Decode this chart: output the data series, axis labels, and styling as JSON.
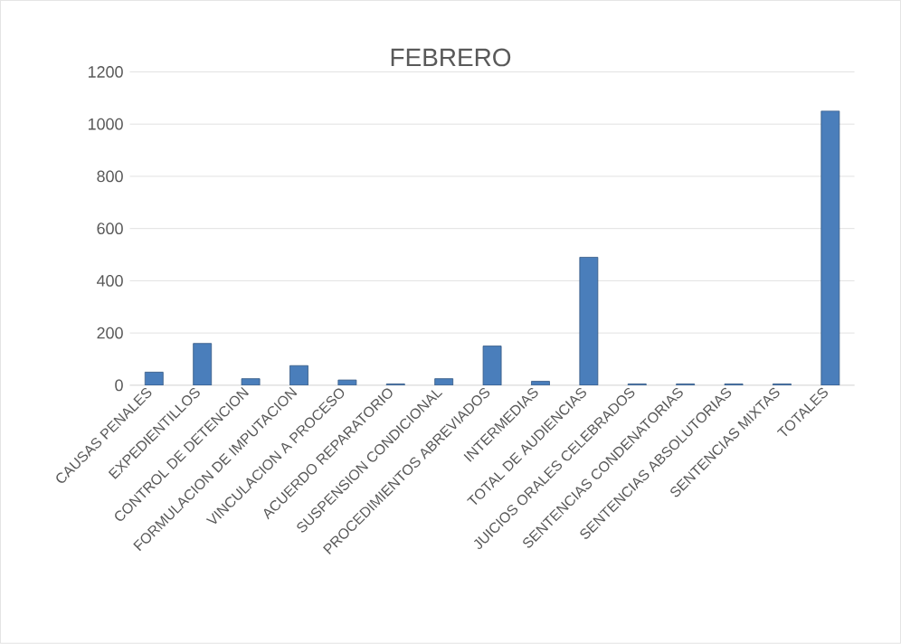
{
  "chart_data": {
    "type": "bar",
    "title": "FEBRERO",
    "categories": [
      "CAUSAS PENALES",
      "EXPEDIENTILLOS",
      "CONTROL DE DETENCION",
      "FORMULACION DE IMPUTACION",
      "VINCULACION A PROCESO",
      "ACUERDO REPARATORIO",
      "SUSPENSION CONDICIONAL",
      "PROCEDIMIENTOS ABREVIADOS",
      "INTERMEDIAS",
      "TOTAL DE AUDIENCIAS",
      "JUICIOS ORALES CELEBRADOS",
      "SENTENCIAS CONDENATORIAS",
      "SENTENCIAS ABSOLUTORIAS",
      "SENTENCIAS MIXTAS",
      "TOTALES"
    ],
    "values": [
      50,
      160,
      25,
      75,
      20,
      5,
      25,
      150,
      15,
      490,
      5,
      5,
      5,
      5,
      1050
    ],
    "color": "#4a7ebb",
    "ylim": [
      0,
      1200
    ],
    "yticks": [
      0,
      200,
      400,
      600,
      800,
      1000,
      1200
    ],
    "grid": "y"
  }
}
